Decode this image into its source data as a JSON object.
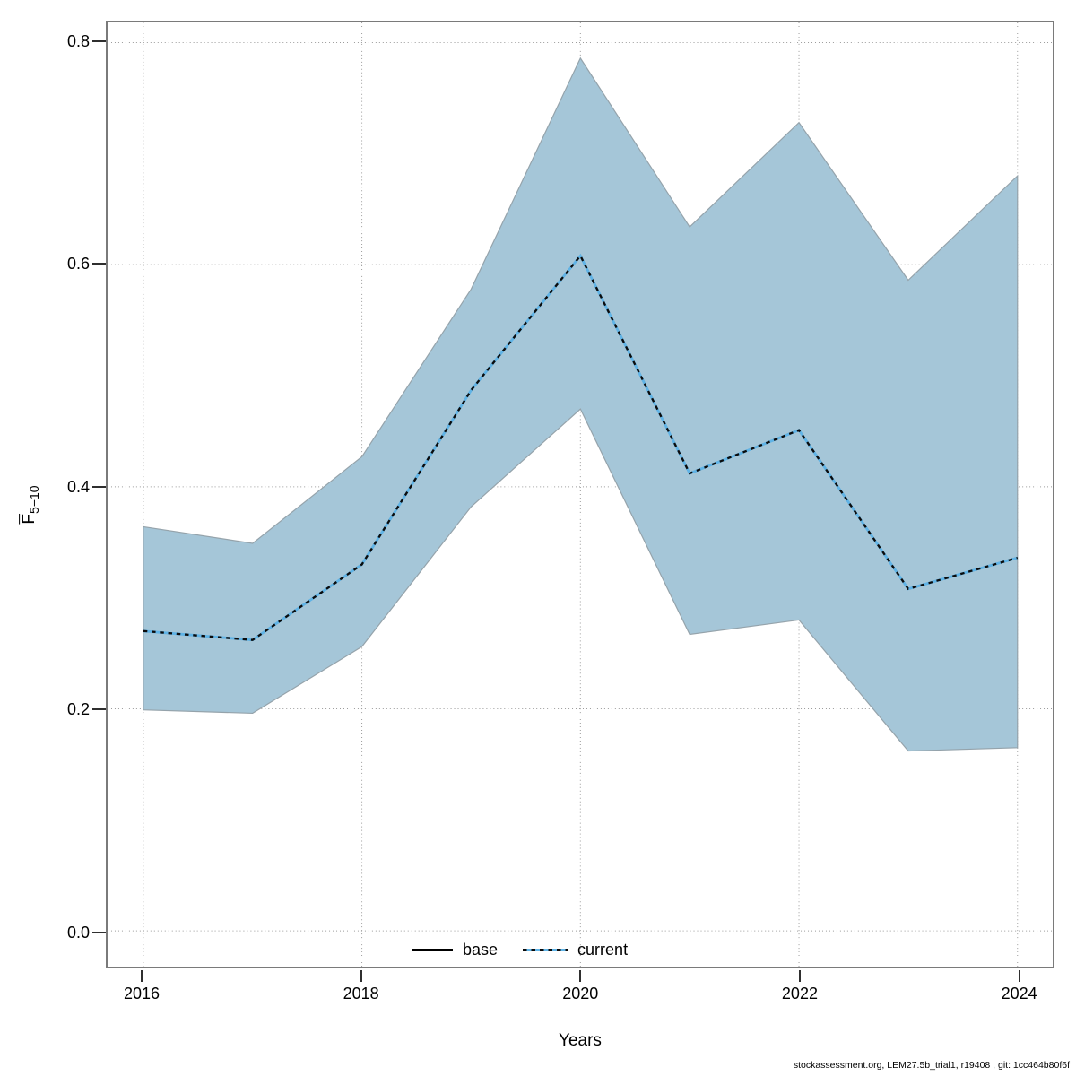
{
  "footer": {
    "text": "stockassessment.org, LEM27.5b_trial1, r19408 , git: 1cc464b80f6f"
  },
  "chart_data": {
    "type": "area",
    "title": "",
    "xlabel": "Years",
    "ylabel": {
      "letter": "F",
      "overline": true,
      "subscript": "5−10"
    },
    "x": [
      2016,
      2017,
      2018,
      2019,
      2020,
      2021,
      2022,
      2023,
      2024
    ],
    "series": [
      {
        "name": "base",
        "line": "solid-black",
        "values": [
          0.27,
          0.262,
          0.33,
          0.487,
          0.608,
          0.412,
          0.451,
          0.308,
          0.336
        ]
      },
      {
        "name": "current",
        "line": "dotted-blue-overlay",
        "values": [
          0.27,
          0.262,
          0.33,
          0.487,
          0.608,
          0.412,
          0.451,
          0.308,
          0.336
        ]
      }
    ],
    "band": {
      "belongs_to": "base",
      "upper": [
        0.364,
        0.349,
        0.427,
        0.578,
        0.786,
        0.634,
        0.728,
        0.586,
        0.68
      ],
      "lower": [
        0.199,
        0.196,
        0.256,
        0.382,
        0.47,
        0.267,
        0.28,
        0.162,
        0.165
      ]
    },
    "xticks": [
      2016,
      2018,
      2020,
      2022,
      2024
    ],
    "xtick_labels": [
      "2016",
      "2018",
      "2020",
      "2022",
      "2024"
    ],
    "yticks": [
      0.0,
      0.2,
      0.4,
      0.6,
      0.8
    ],
    "ytick_labels": [
      "0.0",
      "0.2",
      "0.4",
      "0.6",
      "0.8"
    ],
    "xlim": [
      2015.673,
      2024.322
    ],
    "ylim": [
      -0.0322,
      0.8182
    ],
    "grid": "dotted",
    "legend": [
      {
        "label": "base"
      },
      {
        "label": "current"
      }
    ],
    "legend_position": "bottom-center-inside",
    "colors": {
      "band_fill": "#a5c6d8",
      "band_edge": "#95a3ab",
      "base_line": "#000000",
      "current_line": "#5fb3e6",
      "current_dash": "#0b0b0b",
      "grid": "#9b9b9b",
      "box": "#7a7a7a",
      "text": "#000000"
    }
  }
}
